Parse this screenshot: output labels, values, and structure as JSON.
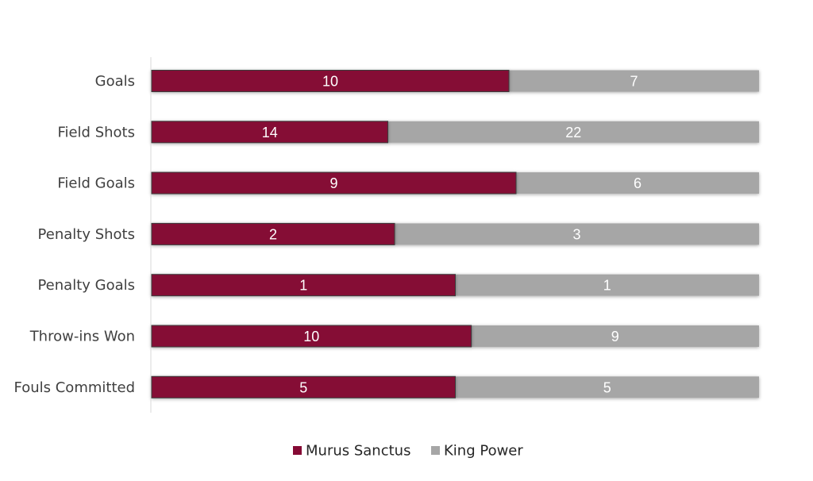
{
  "chart_data": {
    "type": "bar",
    "orientation": "horizontal",
    "stacking": "percent",
    "categories": [
      "Goals",
      "Field Shots",
      "Field Goals",
      "Penalty Shots",
      "Penalty Goals",
      "Throw-ins Won",
      "Fouls Committed"
    ],
    "series": [
      {
        "name": "Murus Sanctus",
        "values": [
          10,
          14,
          9,
          2,
          1,
          10,
          5
        ]
      },
      {
        "name": "King Power",
        "values": [
          7,
          22,
          6,
          3,
          1,
          9,
          5
        ]
      }
    ],
    "colors": {
      "Murus Sanctus": "#850a34",
      "King Power": "#a6a6a6"
    },
    "legend_position": "bottom",
    "grid": false
  }
}
